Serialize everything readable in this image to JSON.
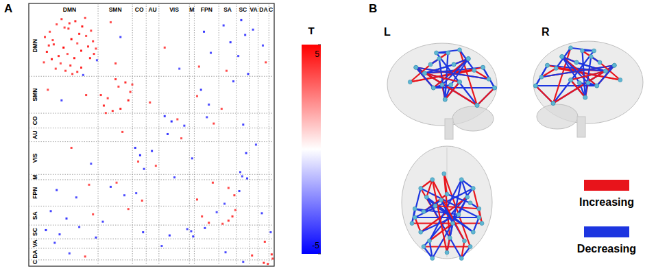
{
  "chart_data": [
    {
      "type": "heatmap",
      "panel": "A",
      "networks": [
        {
          "label": "DMN",
          "size": 58
        },
        {
          "label": "SMN",
          "size": 35
        },
        {
          "label": "CO",
          "size": 14
        },
        {
          "label": "AU",
          "size": 13
        },
        {
          "label": "VIS",
          "size": 31
        },
        {
          "label": "M",
          "size": 5
        },
        {
          "label": "FPN",
          "size": 25
        },
        {
          "label": "SA",
          "size": 18
        },
        {
          "label": "SC",
          "size": 13
        },
        {
          "label": "VA",
          "size": 9
        },
        {
          "label": "DA",
          "size": 11
        },
        {
          "label": "C",
          "size": 4
        }
      ],
      "cells": [
        [
          3,
          20,
          3.8
        ],
        [
          5,
          34,
          4.2
        ],
        [
          8,
          15,
          3.5
        ],
        [
          10,
          41,
          4.5
        ],
        [
          12,
          27,
          3.9
        ],
        [
          14,
          50,
          3.6
        ],
        [
          17,
          38,
          4.1
        ],
        [
          19,
          45,
          3.4
        ],
        [
          22,
          30,
          4.8
        ],
        [
          24,
          52,
          3.7
        ],
        [
          26,
          36,
          3.3
        ],
        [
          29,
          47,
          4.0
        ],
        [
          31,
          55,
          3.6
        ],
        [
          33,
          40,
          4.4
        ],
        [
          2,
          44,
          3.5
        ],
        [
          7,
          28,
          3.9
        ],
        [
          36,
          53,
          3.8
        ],
        [
          40,
          49,
          4.2
        ],
        [
          11,
          23,
          3.6
        ],
        [
          42,
          56,
          -3.4
        ],
        [
          6,
          70,
          3.5
        ],
        [
          20,
          80,
          -3.6
        ],
        [
          45,
          75,
          3.7
        ],
        [
          30,
          125,
          3.6
        ],
        [
          50,
          140,
          -3.3
        ],
        [
          15,
          165,
          -3.8
        ],
        [
          35,
          172,
          -3.5
        ],
        [
          48,
          160,
          3.4
        ],
        [
          9,
          185,
          -3.6
        ],
        [
          25,
          192,
          -3.9
        ],
        [
          52,
          188,
          3.5
        ],
        [
          4,
          203,
          -4.0
        ],
        [
          18,
          207,
          -3.7
        ],
        [
          38,
          200,
          -3.5
        ],
        [
          55,
          210,
          -3.8
        ],
        [
          13,
          215,
          -3.6
        ],
        [
          28,
          225,
          -3.4
        ],
        [
          44,
          228,
          3.6
        ],
        [
          60,
          75,
          3.9
        ],
        [
          63,
          85,
          4.1
        ],
        [
          67,
          78,
          3.6
        ],
        [
          72,
          90,
          3.8
        ],
        [
          80,
          88,
          4.3
        ],
        [
          65,
          92,
          3.5
        ],
        [
          70,
          162,
          -3.7
        ],
        [
          84,
          170,
          -3.5
        ],
        [
          76,
          158,
          3.4
        ],
        [
          62,
          195,
          -3.6
        ],
        [
          88,
          183,
          3.5
        ],
        [
          82,
          110,
          3.6
        ],
        [
          95,
          125,
          -3.9
        ],
        [
          100,
          132,
          -4.1
        ],
        [
          104,
          145,
          -3.6
        ],
        [
          98,
          138,
          3.5
        ],
        [
          102,
          175,
          3.6
        ],
        [
          96,
          168,
          -3.4
        ],
        [
          103,
          205,
          -3.7
        ],
        [
          112,
          128,
          -3.8
        ],
        [
          116,
          142,
          3.4
        ],
        [
          135,
          153,
          -3.6
        ],
        [
          130,
          208,
          -3.9
        ],
        [
          148,
          202,
          -3.5
        ],
        [
          122,
          218,
          -3.4
        ],
        [
          154,
          209,
          -3.8
        ],
        [
          152,
          204,
          -3.5
        ],
        [
          158,
          174,
          3.7
        ],
        [
          163,
          190,
          3.6
        ],
        [
          170,
          196,
          3.8
        ],
        [
          178,
          186,
          -3.4
        ],
        [
          166,
          201,
          -3.7
        ],
        [
          184,
          197,
          3.5
        ],
        [
          190,
          194,
          3.9
        ],
        [
          187,
          224,
          -3.6
        ],
        [
          205,
          233,
          -3.5
        ],
        [
          214,
          227,
          3.8
        ],
        [
          226,
          234,
          4.0
        ],
        [
          230,
          235,
          3.7
        ]
      ],
      "colorbar": {
        "title": "T",
        "range": [
          -5,
          5
        ],
        "ticks": [
          -5,
          5
        ]
      }
    },
    {
      "type": "network",
      "panel": "B",
      "view_labels": [
        "L",
        "R"
      ],
      "series": [
        {
          "name": "Increasing",
          "color": "#e8141b"
        },
        {
          "name": "Decreasing",
          "color": "#1c35e0"
        }
      ],
      "nodes": [
        [
          -45,
          30,
          25
        ],
        [
          45,
          30,
          25
        ],
        [
          -5,
          55,
          10
        ],
        [
          5,
          -55,
          30
        ],
        [
          -40,
          -70,
          35
        ],
        [
          40,
          -70,
          35
        ],
        [
          -55,
          -20,
          40
        ],
        [
          55,
          -20,
          40
        ],
        [
          -25,
          -90,
          0
        ],
        [
          25,
          -90,
          0
        ],
        [
          -60,
          -30,
          10
        ],
        [
          60,
          -30,
          10
        ],
        [
          -35,
          15,
          0
        ],
        [
          35,
          15,
          0
        ],
        [
          -10,
          10,
          60
        ],
        [
          10,
          -30,
          65
        ],
        [
          -45,
          -45,
          50
        ],
        [
          45,
          -45,
          50
        ],
        [
          -20,
          0,
          5
        ],
        [
          20,
          -15,
          5
        ],
        [
          -30,
          -60,
          -30
        ],
        [
          30,
          -60,
          -30
        ],
        [
          -55,
          -5,
          -20
        ],
        [
          55,
          -5,
          -20
        ],
        [
          -25,
          45,
          35
        ],
        [
          25,
          45,
          35
        ],
        [
          0,
          -80,
          15
        ],
        [
          -40,
          -10,
          60
        ],
        [
          40,
          5,
          50
        ],
        [
          0,
          20,
          40
        ]
      ],
      "edges": [
        [
          0,
          3,
          3.9
        ],
        [
          1,
          4,
          -3.6
        ],
        [
          2,
          5,
          3.7
        ],
        [
          0,
          7,
          -3.8
        ],
        [
          1,
          6,
          -3.5
        ],
        [
          2,
          3,
          4.2
        ],
        [
          4,
          5,
          3.6
        ],
        [
          6,
          7,
          -3.9
        ],
        [
          8,
          13,
          -3.7
        ],
        [
          9,
          12,
          -3.4
        ],
        [
          10,
          11,
          3.8
        ],
        [
          12,
          17,
          -3.6
        ],
        [
          13,
          16,
          3.5
        ],
        [
          14,
          15,
          -3.8
        ],
        [
          14,
          21,
          -3.5
        ],
        [
          15,
          20,
          3.6
        ],
        [
          16,
          19,
          -3.7
        ],
        [
          17,
          18,
          -3.9
        ],
        [
          18,
          23,
          3.5
        ],
        [
          19,
          22,
          -3.6
        ],
        [
          20,
          25,
          -3.4
        ],
        [
          21,
          24,
          3.7
        ],
        [
          22,
          27,
          -3.8
        ],
        [
          23,
          28,
          -3.5
        ],
        [
          24,
          26,
          3.9
        ],
        [
          25,
          26,
          -3.6
        ],
        [
          27,
          29,
          3.4
        ],
        [
          28,
          29,
          -3.7
        ],
        [
          0,
          24,
          4.0
        ],
        [
          1,
          25,
          -3.5
        ],
        [
          3,
          26,
          3.6
        ],
        [
          4,
          8,
          -3.8
        ],
        [
          5,
          9,
          -3.4
        ],
        [
          6,
          16,
          3.5
        ],
        [
          7,
          17,
          -3.6
        ],
        [
          10,
          22,
          -3.9
        ],
        [
          11,
          23,
          3.7
        ],
        [
          12,
          18,
          -3.5
        ],
        [
          13,
          19,
          -3.8
        ],
        [
          2,
          29,
          3.6
        ],
        [
          8,
          20,
          -3.7
        ],
        [
          9,
          21,
          3.5
        ],
        [
          0,
          10,
          -3.6
        ],
        [
          1,
          11,
          3.8
        ],
        [
          14,
          27,
          -3.4
        ],
        [
          15,
          3,
          -3.9
        ],
        [
          24,
          12,
          3.6
        ],
        [
          25,
          13,
          -3.5
        ]
      ]
    }
  ]
}
